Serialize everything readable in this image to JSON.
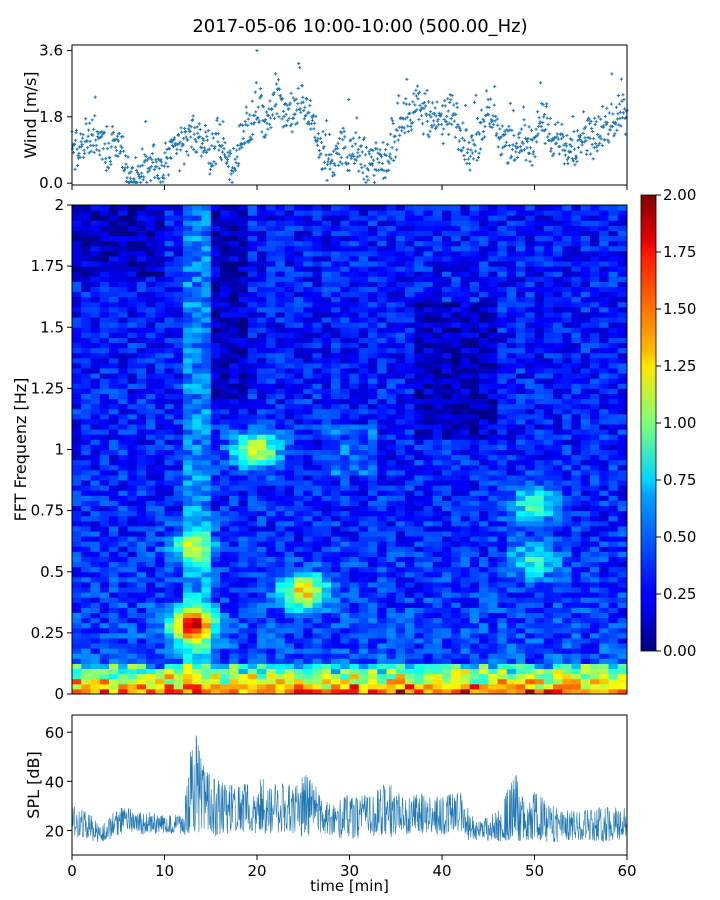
{
  "title": "2017-05-06 10:00-10:00 (500.00_Hz)",
  "chart_data": [
    {
      "type": "scatter",
      "name": "wind",
      "ylabel": "Wind [m/s]",
      "xlim": [
        0,
        60
      ],
      "ylim": [
        -0.05,
        3.75
      ],
      "yticks": [
        "0.0",
        "1.8",
        "3.6"
      ],
      "ytick_values": [
        0.0,
        1.8,
        3.6
      ],
      "color": "#1f77b4",
      "marker": "+",
      "trend": {
        "x": [
          0,
          1,
          2,
          3,
          4,
          5,
          6,
          7,
          8,
          9,
          10,
          11,
          12,
          13,
          14,
          15,
          16,
          17,
          18,
          19,
          20,
          21,
          22,
          23,
          24,
          25,
          26,
          27,
          28,
          29,
          30,
          31,
          32,
          33,
          34,
          35,
          36,
          37,
          38,
          39,
          40,
          41,
          42,
          43,
          44,
          45,
          46,
          47,
          48,
          49,
          50,
          51,
          52,
          53,
          54,
          55,
          56,
          57,
          58,
          59,
          60
        ],
        "y": [
          1.0,
          0.9,
          1.3,
          1.1,
          0.9,
          1.2,
          0.3,
          0.2,
          0.5,
          0.4,
          0.5,
          0.8,
          1.1,
          1.3,
          1.2,
          0.7,
          1.3,
          0.5,
          0.9,
          1.4,
          2.0,
          1.6,
          2.3,
          2.0,
          1.8,
          2.2,
          1.6,
          0.8,
          0.5,
          1.0,
          0.9,
          0.7,
          0.6,
          0.5,
          0.6,
          1.3,
          1.8,
          2.2,
          1.9,
          1.7,
          1.6,
          2.0,
          1.2,
          0.8,
          1.3,
          2.0,
          1.6,
          1.0,
          0.9,
          1.1,
          1.2,
          1.8,
          1.0,
          1.2,
          0.9,
          1.4,
          1.3,
          1.2,
          1.6,
          1.9,
          2.0
        ]
      },
      "max": {
        "x": 20,
        "y": 3.6
      }
    },
    {
      "type": "heatmap",
      "name": "spectrogram",
      "ylabel": "FFT Frequenz [Hz]",
      "xlim": [
        0,
        60
      ],
      "ylim": [
        0,
        2
      ],
      "yticks": [
        "0",
        "0.25",
        "0.5",
        "0.75",
        "1",
        "1.25",
        "1.5",
        "1.75",
        "2"
      ],
      "ytick_values": [
        0,
        0.25,
        0.5,
        0.75,
        1.0,
        1.25,
        1.5,
        1.75,
        2.0
      ],
      "colormap": "jet",
      "colorbar": {
        "range": [
          0,
          2
        ],
        "ticks": [
          "0.00",
          "0.25",
          "0.50",
          "0.75",
          "1.00",
          "1.25",
          "1.50",
          "1.75",
          "2.00"
        ],
        "tick_values": [
          0,
          0.25,
          0.5,
          0.75,
          1.0,
          1.25,
          1.5,
          1.75,
          2.0
        ]
      },
      "hotspots": [
        {
          "time": 20,
          "freq": 1.0,
          "value": 1.2
        },
        {
          "time": 13,
          "freq": 0.28,
          "value": 1.6
        },
        {
          "time": 25,
          "freq": 0.42,
          "value": 1.3
        },
        {
          "time": 13,
          "freq": 0.6,
          "value": 0.95
        },
        {
          "time": 50,
          "freq": 0.78,
          "value": 0.9
        },
        {
          "time": 50,
          "freq": 0.55,
          "value": 0.8
        }
      ]
    },
    {
      "type": "line",
      "name": "spl",
      "ylabel": "SPL [dB]",
      "xlabel": "time [min]",
      "xlim": [
        0,
        60
      ],
      "ylim": [
        10,
        67
      ],
      "xticks": [
        "0",
        "10",
        "20",
        "30",
        "40",
        "50",
        "60"
      ],
      "xtick_values": [
        0,
        10,
        20,
        30,
        40,
        50,
        60
      ],
      "yticks": [
        "20",
        "40",
        "60"
      ],
      "ytick_values": [
        20,
        40,
        60
      ],
      "color": "#1f77b4",
      "envelope": {
        "x": [
          0,
          2,
          3,
          4,
          5,
          6,
          8,
          10,
          12,
          13,
          13.5,
          14,
          15,
          16,
          18,
          20,
          22,
          24,
          25,
          26,
          28,
          30,
          32,
          34,
          36,
          38,
          40,
          42,
          43,
          44,
          46,
          48,
          49,
          50,
          52,
          54,
          56,
          58,
          60
        ],
        "low": [
          18,
          16,
          15,
          16,
          18,
          20,
          18,
          19,
          18,
          19,
          20,
          18,
          17,
          18,
          20,
          18,
          19,
          18,
          17,
          18,
          18,
          16,
          18,
          17,
          18,
          19,
          18,
          20,
          15,
          16,
          15,
          16,
          15,
          16,
          15,
          16,
          16,
          15,
          17
        ],
        "high": [
          30,
          27,
          22,
          25,
          30,
          29,
          28,
          26,
          27,
          64,
          58,
          50,
          42,
          40,
          38,
          42,
          40,
          38,
          44,
          40,
          30,
          35,
          34,
          40,
          34,
          35,
          34,
          36,
          28,
          24,
          28,
          44,
          30,
          36,
          30,
          28,
          29,
          30,
          29
        ]
      }
    }
  ]
}
